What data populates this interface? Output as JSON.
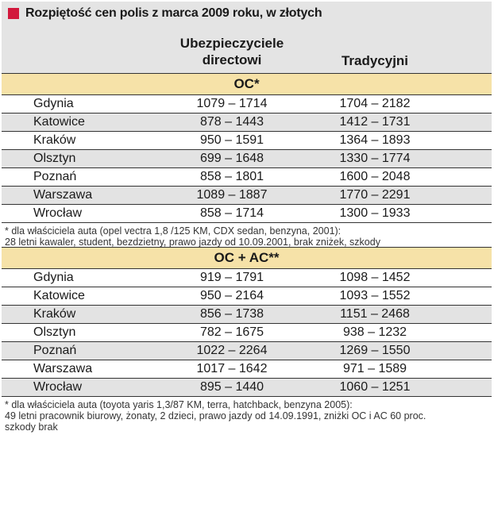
{
  "title": "Rozpiętość cen polis z marca 2009 roku, w złotych",
  "columns": {
    "direct_line1": "Ubezpieczyciele",
    "direct_line2": "directowi",
    "traditional": "Tradycyjni"
  },
  "colors": {
    "accent_square": "#d2183c",
    "header_bg": "#e4e4e4",
    "section_band": "#f6e2a8",
    "row_alt": "#e3e3e3"
  },
  "section1": {
    "label": "OC*",
    "rows": [
      {
        "city": "Gdynia",
        "direct": "1079 – 1714",
        "trad": "1704 – 2182"
      },
      {
        "city": "Katowice",
        "direct": "878 – 1443",
        "trad": "1412 – 1731"
      },
      {
        "city": "Kraków",
        "direct": "950 – 1591",
        "trad": "1364 – 1893"
      },
      {
        "city": "Olsztyn",
        "direct": "699 – 1648",
        "trad": "1330 – 1774"
      },
      {
        "city": "Poznań",
        "direct": "858 – 1801",
        "trad": "1600 – 2048"
      },
      {
        "city": "Warszawa",
        "direct": "1089 – 1887",
        "trad": "1770 – 2291"
      },
      {
        "city": "Wrocław",
        "direct": "858 – 1714",
        "trad": "1300 – 1933"
      }
    ],
    "footnote_line1": "* dla właściciela auta (opel vectra 1,8 /125 KM, CDX sedan, benzyna, 2001):",
    "footnote_line2": "28 letni kawaler, student, bezdzietny, prawo jazdy od 10.09.2001, brak zniżek, szkody"
  },
  "section2": {
    "label": "OC + AC**",
    "rows": [
      {
        "city": "Gdynia",
        "direct": "919 – 1791",
        "trad": "1098 – 1452"
      },
      {
        "city": "Katowice",
        "direct": "950 – 2164",
        "trad": "1093 – 1552"
      },
      {
        "city": "Kraków",
        "direct": "856 – 1738",
        "trad": "1151 – 2468"
      },
      {
        "city": "Olsztyn",
        "direct": "782 – 1675",
        "trad": "938 – 1232"
      },
      {
        "city": "Poznań",
        "direct": "1022 – 2264",
        "trad": "1269 – 1550"
      },
      {
        "city": "Warszawa",
        "direct": "1017 – 1642",
        "trad": "971 – 1589"
      },
      {
        "city": "Wrocław",
        "direct": "895 – 1440",
        "trad": "1060 – 1251"
      }
    ],
    "footnote_line1": "* dla właściciela auta (toyota yaris 1,3/87 KM,  terra, hatchback, benzyna 2005):",
    "footnote_line2": "49 letni pracownik biurowy, żonaty, 2 dzieci, prawo jazdy od 14.09.1991, zniżki OC i AC 60 proc.",
    "footnote_line3": "szkody brak"
  }
}
